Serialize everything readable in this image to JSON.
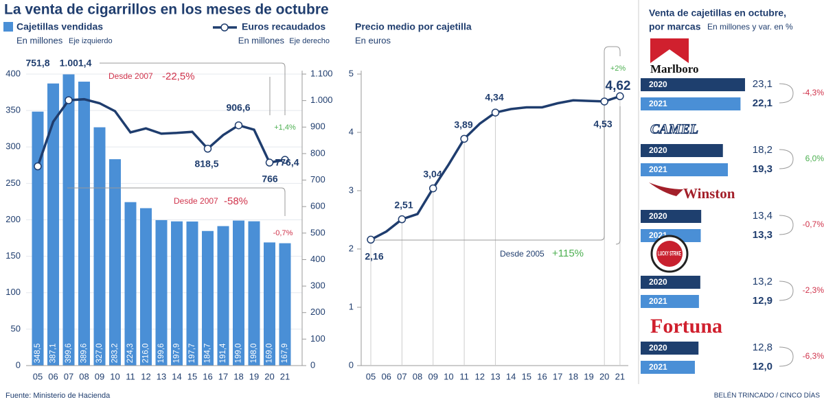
{
  "title": "La venta de cigarrillos en los meses de octubre",
  "source": "Fuente: Ministerio de Hacienda",
  "credit": "BELÉN TRINCADO / CINCO DÍAS",
  "chart_data": [
    {
      "type": "combo",
      "categories": [
        "05",
        "06",
        "07",
        "08",
        "09",
        "10",
        "11",
        "12",
        "13",
        "14",
        "15",
        "16",
        "17",
        "18",
        "19",
        "20",
        "21"
      ],
      "series": [
        {
          "name": "Cajetillas vendidas",
          "unit": "En millones",
          "axis_note": "Eje izquierdo",
          "type": "bar",
          "color": "#4a8fd6",
          "values": [
            348.5,
            387.1,
            399.6,
            389.6,
            327.0,
            283.2,
            224.3,
            216.0,
            199.6,
            197.9,
            197.7,
            184.7,
            191.4,
            199.0,
            198.0,
            169.0,
            167.9
          ],
          "value_labels": [
            "348,5",
            "387,1",
            "399,6",
            "389,6",
            "327,0",
            "283,2",
            "224,3",
            "216,0",
            "199,6",
            "197,9",
            "197,7",
            "184,7",
            "191,4",
            "199,0",
            "198,0",
            "169,0",
            "167,9"
          ]
        },
        {
          "name": "Euros recaudados",
          "unit": "En millones",
          "axis_note": "Eje derecho",
          "type": "line",
          "axis": "y2",
          "color": "#1f3d6e",
          "values": [
            751.8,
            920,
            1001.4,
            1005,
            990,
            960,
            880,
            895,
            875,
            878,
            882,
            818.5,
            870,
            906.6,
            890,
            766,
            776.4
          ],
          "value_labels": [
            "751,8",
            null,
            "1.001,4",
            null,
            null,
            null,
            null,
            null,
            null,
            null,
            null,
            "818,5",
            null,
            "906,6",
            null,
            "766",
            "776,4"
          ]
        }
      ],
      "ylim": [
        0,
        400
      ],
      "yticks": [
        0,
        50,
        100,
        150,
        200,
        250,
        300,
        350,
        400
      ],
      "y2lim": [
        0,
        1100
      ],
      "y2ticks": [
        0,
        100,
        200,
        300,
        400,
        500,
        600,
        700,
        800,
        900,
        {
          "value": 1000,
          "label": "1.000"
        },
        {
          "value": 1100,
          "label": "1.100"
        }
      ],
      "annotations": [
        {
          "label": "Desde 2007",
          "change": "-22,5%"
        },
        {
          "change": "+1,4%"
        },
        {
          "label": "Desde 2007",
          "change": "-58%"
        },
        {
          "change": "-0,7%"
        }
      ]
    },
    {
      "type": "line",
      "title": "Precio medio por cajetilla",
      "subtitle": "En euros",
      "color": "#1f3d6e",
      "categories": [
        "05",
        "06",
        "07",
        "08",
        "09",
        "10",
        "11",
        "12",
        "13",
        "14",
        "15",
        "16",
        "17",
        "18",
        "19",
        "20",
        "21"
      ],
      "values": [
        2.16,
        2.3,
        2.51,
        2.6,
        3.04,
        3.45,
        3.89,
        4.15,
        4.34,
        4.4,
        4.43,
        4.43,
        4.5,
        4.55,
        4.54,
        4.53,
        4.62
      ],
      "value_labels": [
        "2,16",
        null,
        "2,51",
        null,
        "3,04",
        null,
        "3,89",
        null,
        "4,34",
        null,
        null,
        null,
        null,
        null,
        null,
        "4,53",
        "4,62"
      ],
      "ylim": [
        0,
        5
      ],
      "yticks": [
        0,
        1,
        2,
        3,
        4,
        5
      ],
      "annotations": [
        {
          "label": "Desde 2005",
          "change": "+115%"
        },
        {
          "change": "+2%"
        }
      ]
    },
    {
      "type": "hbar",
      "title": [
        "Venta de cajetillas en octubre,",
        "por marcas"
      ],
      "subtitle": "En millones y var. en %",
      "categories": [
        "Marlboro",
        "CAMEL",
        "Winston",
        "LUCKY STRIKE",
        "Fortuna"
      ],
      "series": [
        {
          "name": "2020",
          "color": "#1e3f6e",
          "values": [
            23.1,
            18.2,
            13.4,
            13.2,
            12.8
          ],
          "value_labels": [
            "23,1",
            "18,2",
            "13,4",
            "13,2",
            "12,8"
          ]
        },
        {
          "name": "2021",
          "color": "#4a8fd6",
          "values": [
            22.1,
            19.3,
            13.3,
            12.9,
            12.0
          ],
          "value_labels": [
            "22,1",
            "19,3",
            "13,3",
            "12,9",
            "12,0"
          ]
        }
      ],
      "changes": [
        "-4,3%",
        "6,0%",
        "-0,7%",
        "-2,3%",
        "-6,3%"
      ]
    }
  ]
}
